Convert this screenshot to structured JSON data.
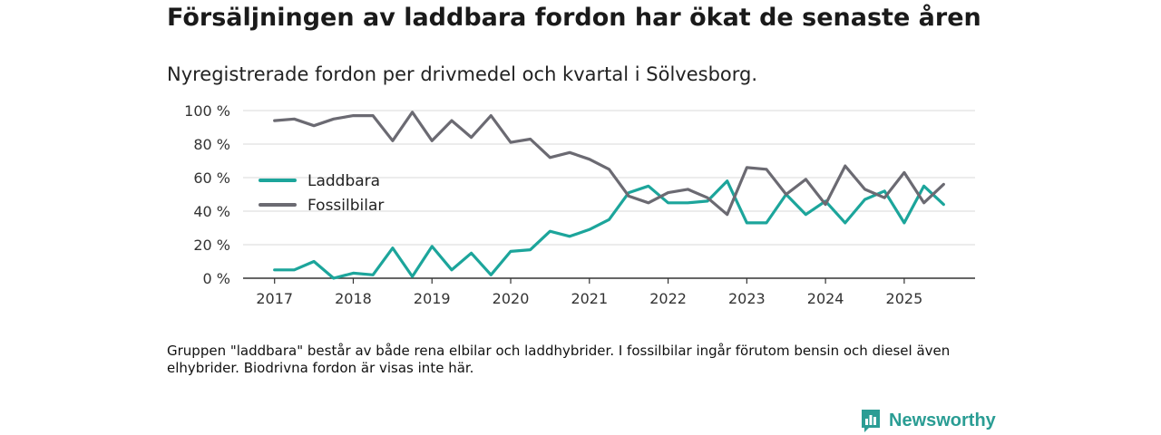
{
  "title": "Försäljningen av laddbara fordon har ökat de senaste åren",
  "subtitle": "Nyregistrerade fordon per drivmedel och kvartal i Sölvesborg.",
  "footnote": "Gruppen \"laddbara\" består av både rena elbilar och laddhybrider. I fossilbilar ingår förutom bensin och diesel även elhybrider. Biodrivna fordon är visas inte här.",
  "brand": {
    "name": "Newsworthy",
    "color": "#2a9d94",
    "icon": "bar-chart-icon"
  },
  "chart_data": {
    "type": "line",
    "title": "Försäljningen av laddbara fordon har ökat de senaste åren",
    "xlabel": "",
    "ylabel": "",
    "ylim": [
      0,
      100
    ],
    "yticks": [
      0,
      20,
      40,
      60,
      80,
      100
    ],
    "ytick_labels": [
      "0 %",
      "20 %",
      "40 %",
      "60 %",
      "80 %",
      "100 %"
    ],
    "xlim": [
      2016.6,
      2025.9
    ],
    "xticks": [
      2017,
      2018,
      2019,
      2020,
      2021,
      2022,
      2023,
      2024,
      2025
    ],
    "xtick_labels": [
      "2017",
      "2018",
      "2019",
      "2020",
      "2021",
      "2022",
      "2023",
      "2024",
      "2025"
    ],
    "grid": true,
    "legend_position": "left",
    "x": [
      2017.0,
      2017.25,
      2017.5,
      2017.75,
      2018.0,
      2018.25,
      2018.5,
      2018.75,
      2019.0,
      2019.25,
      2019.5,
      2019.75,
      2020.0,
      2020.25,
      2020.5,
      2020.75,
      2021.0,
      2021.25,
      2021.5,
      2021.75,
      2022.0,
      2022.25,
      2022.5,
      2022.75,
      2023.0,
      2023.25,
      2023.5,
      2023.75,
      2024.0,
      2024.25,
      2024.5,
      2024.75,
      2025.0,
      2025.25,
      2025.5
    ],
    "series": [
      {
        "name": "Laddbara",
        "color": "#1ca59b",
        "values": [
          5,
          5,
          10,
          0,
          3,
          2,
          18,
          1,
          19,
          5,
          15,
          2,
          16,
          17,
          28,
          25,
          29,
          35,
          51,
          55,
          45,
          45,
          46,
          58,
          33,
          33,
          50,
          38,
          46,
          33,
          47,
          52,
          33,
          55,
          44
        ]
      },
      {
        "name": "Fossilbilar",
        "color": "#6b6a72",
        "values": [
          94,
          95,
          91,
          95,
          97,
          97,
          82,
          99,
          82,
          94,
          84,
          97,
          81,
          83,
          72,
          75,
          71,
          65,
          49,
          45,
          51,
          53,
          48,
          38,
          66,
          65,
          50,
          59,
          44,
          67,
          53,
          48,
          63,
          45,
          56
        ]
      }
    ]
  }
}
